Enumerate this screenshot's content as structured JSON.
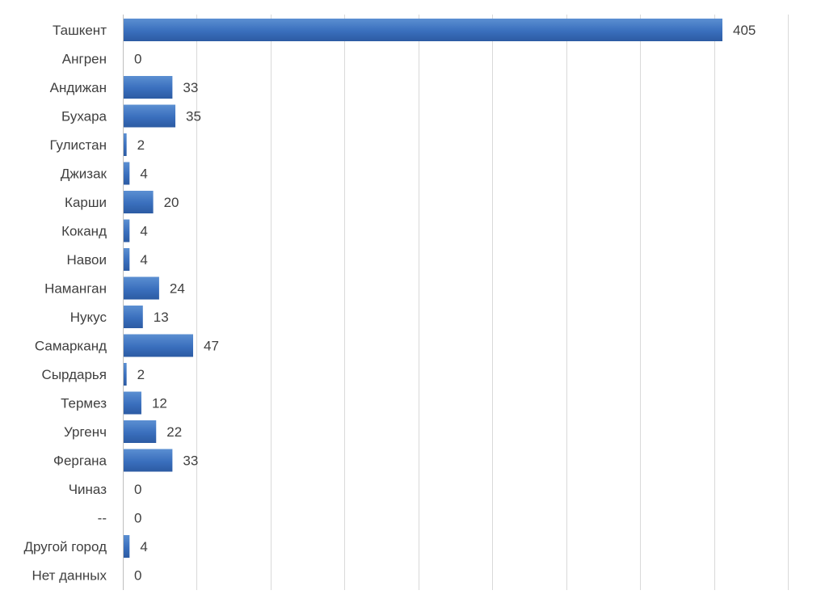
{
  "chart_data": {
    "type": "bar",
    "orientation": "horizontal",
    "title": "",
    "xlabel": "",
    "ylabel": "",
    "categories": [
      "Ташкент",
      "Ангрен",
      "Андижан",
      "Бухара",
      "Гулистан",
      "Джизак",
      "Карши",
      "Коканд",
      "Навои",
      "Наманган",
      "Нукус",
      "Самарканд",
      "Сырдарья",
      "Термез",
      "Ургенч",
      "Фергана",
      "Чиназ",
      "--",
      "Другой город",
      "Нет данных"
    ],
    "values": [
      405,
      0,
      33,
      35,
      2,
      4,
      20,
      4,
      4,
      24,
      13,
      47,
      2,
      12,
      22,
      33,
      0,
      0,
      4,
      0
    ],
    "xlim": [
      0,
      450
    ],
    "grid": true,
    "legend": "none",
    "colors": {
      "bar_light": "#4f81c7",
      "bar_dark": "#2f5fa8",
      "grid": "#d9d9d9",
      "text": "#404040"
    }
  }
}
